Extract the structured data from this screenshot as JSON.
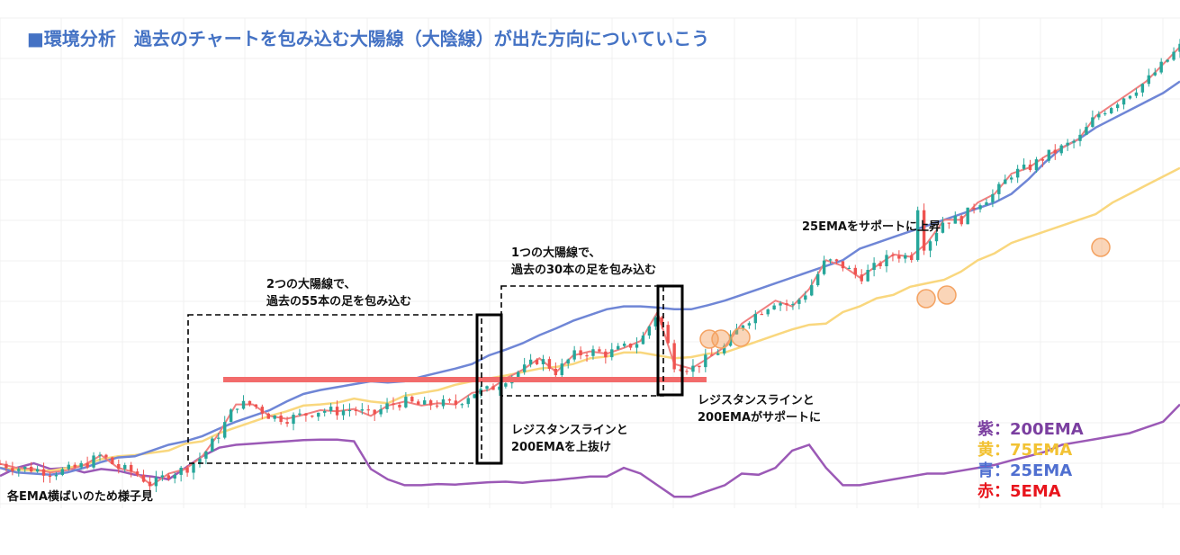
{
  "title": "■環境分析　過去のチャートを包み込む大陽線（大陰線）が出た方向についていこう",
  "annotations": {
    "ema_flat": "各EMA横ばいのため様子見",
    "engulf55_line1": "2つの大陽線で、",
    "engulf55_line2": "過去の55本の足を包み込む",
    "engulf30_line1": "1つの大陽線で、",
    "engulf30_line2": "過去の30本の足を包み込む",
    "breakout_line1": "レジスタンスラインと",
    "breakout_line2": "200EMAを上抜け",
    "support_line1": "レジスタンスラインと",
    "support_line2": "200EMAがサポートに",
    "ema25_support": "25EMAをサポートに上昇"
  },
  "legend": [
    {
      "label": "紫：200EMA",
      "color": "#7b3fa0"
    },
    {
      "label": "黄：75EMA",
      "color": "#f2c233"
    },
    {
      "label": "青：25EMA",
      "color": "#4f6fd0"
    },
    {
      "label": "赤：5EMA",
      "color": "#e8141c"
    }
  ],
  "chart_data": {
    "type": "line",
    "grid": true,
    "colors": {
      "up": "#26a69a",
      "down": "#ef5350",
      "ema200": "#9b59b6",
      "ema75": "#f9d77e",
      "ema25": "#6f86d6",
      "ema5": "#f08080",
      "resistance": "#f26b6b",
      "touch": "#f4a261"
    },
    "series": [
      {
        "values": [
          456,
          470,
          478,
          468,
          470,
          462,
          468,
          465,
          458,
          455,
          450,
          470,
          490,
          505,
          510,
          512,
          514,
          516,
          518,
          519,
          519,
          516,
          468,
          450,
          440,
          440,
          442,
          441,
          443,
          445,
          446,
          444,
          447,
          449,
          452,
          455,
          455,
          470,
          460,
          440,
          420,
          420,
          430,
          440,
          460,
          458,
          470,
          500,
          510,
          470,
          440,
          440,
          445,
          450,
          455,
          460,
          460,
          465,
          470,
          475,
          483,
          490,
          498,
          510,
          515,
          520,
          525,
          530,
          540,
          550,
          580
        ]
      },
      {
        "values": [
          470,
          467,
          465,
          465,
          470,
          475,
          485,
          490,
          492,
          496,
          500,
          512,
          516,
          530,
          540,
          550,
          560,
          568,
          578,
          580,
          583,
          590,
          585,
          582,
          595,
          600,
          605,
          614,
          620,
          625,
          630,
          636,
          642,
          645,
          650,
          660,
          663,
          670,
          670,
          665,
          660,
          662,
          668,
          670,
          680,
          690,
          700,
          710,
          718,
          720,
          740,
          750,
          764,
          770,
          784,
          790,
          796,
          810,
          830,
          842,
          860,
          870,
          880,
          890,
          900,
          910,
          930,
          945,
          960,
          975,
          990
        ]
      },
      {
        "values": [
          470,
          462,
          460,
          458,
          462,
          470,
          480,
          488,
          490,
          500,
          510,
          516,
          525,
          538,
          550,
          560,
          570,
          585,
          598,
          605,
          610,
          615,
          620,
          618,
          620,
          628,
          635,
          642,
          650,
          665,
          675,
          686,
          700,
          712,
          725,
          735,
          745,
          750,
          750,
          748,
          745,
          745,
          752,
          760,
          770,
          780,
          790,
          800,
          810,
          820,
          830,
          850,
          860,
          870,
          880,
          890,
          900,
          910,
          920,
          930,
          945,
          970,
          1000,
          1025,
          1040,
          1060,
          1075,
          1090,
          1105,
          1120,
          1140
        ]
      },
      {
        "values": [
          477,
          470,
          468,
          462,
          466,
          475,
          492,
          470,
          462,
          440,
          460,
          468,
          490,
          530,
          580,
          580,
          560,
          555,
          562,
          570,
          568,
          572,
          560,
          578,
          585,
          578,
          582,
          580,
          600,
          605,
          625,
          640,
          660,
          636,
          665,
          672,
          668,
          678,
          690,
          740,
          650,
          642,
          660,
          680,
          720,
          740,
          760,
          750,
          780,
          830,
          820,
          800,
          820,
          840,
          836,
          860,
          900,
          900,
          930,
          945,
          980,
          990,
          1010,
          1025,
          1040,
          1080,
          1100,
          1120,
          1140,
          1170,
          1200
        ]
      }
    ]
  }
}
